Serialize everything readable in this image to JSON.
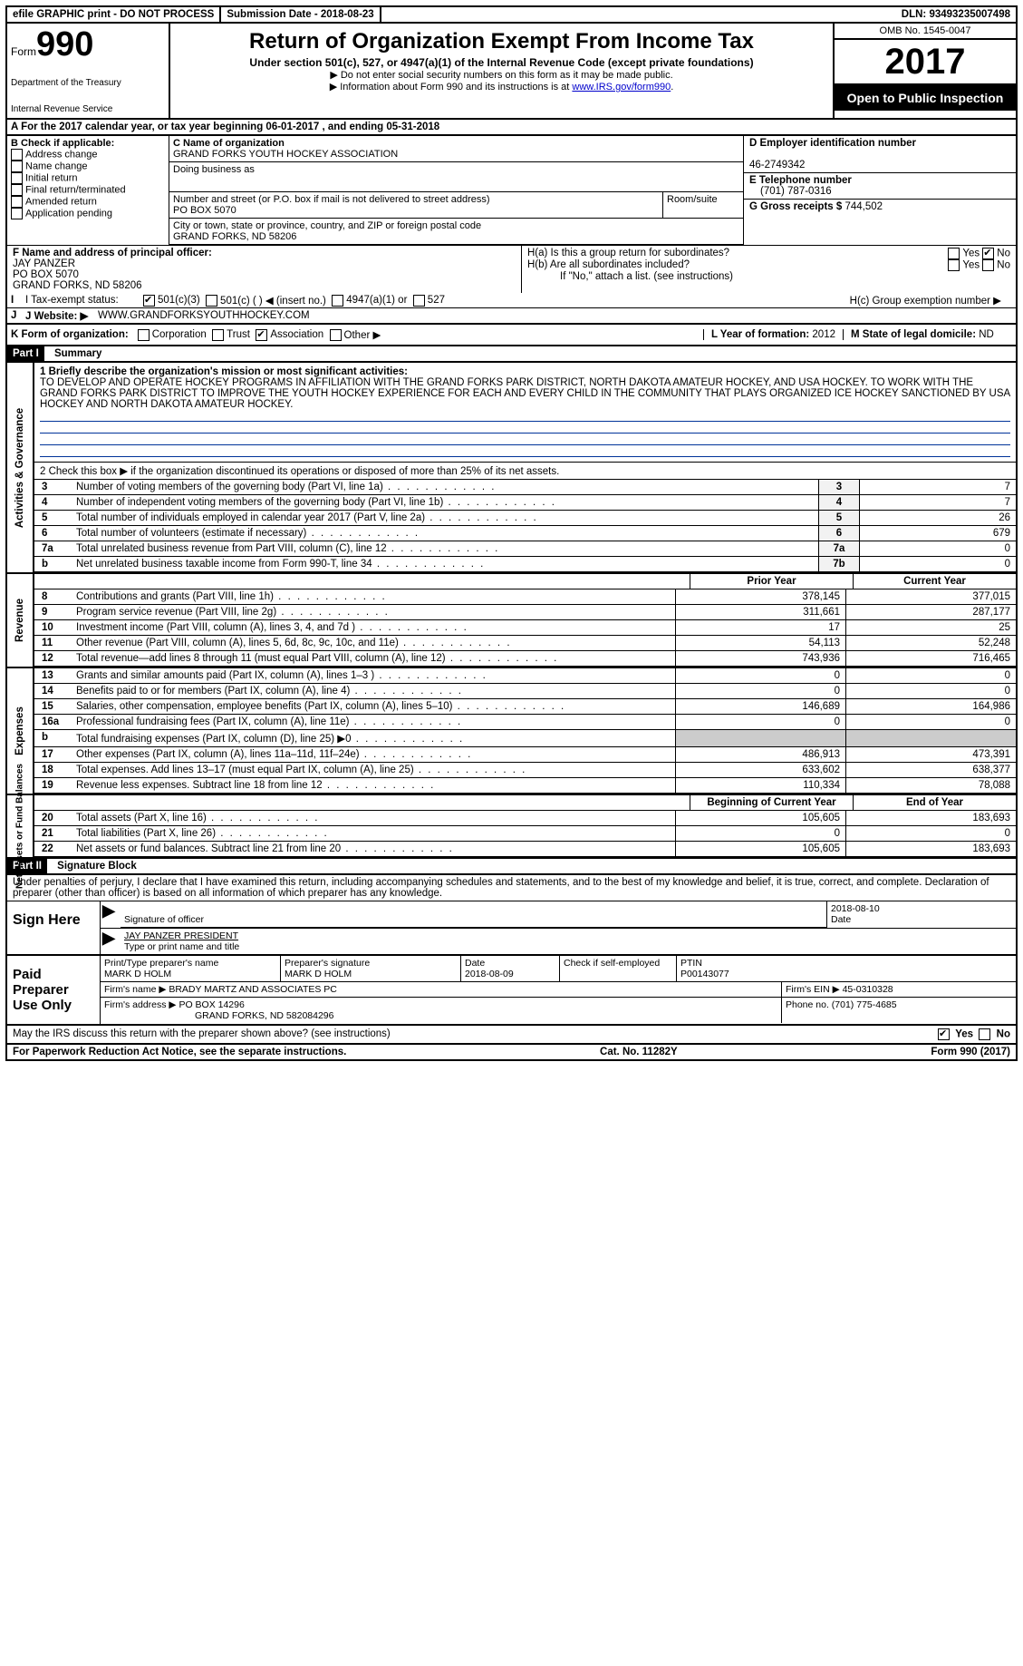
{
  "top": {
    "efile": "efile GRAPHIC print - DO NOT PROCESS",
    "subDate": "Submission Date - 2018-08-23",
    "dln": "DLN: 93493235007498"
  },
  "header": {
    "formWord": "Form",
    "formNum": "990",
    "dept": "Department of the Treasury",
    "irs": "Internal Revenue Service",
    "title": "Return of Organization Exempt From Income Tax",
    "sub": "Under section 501(c), 527, or 4947(a)(1) of the Internal Revenue Code (except private foundations)",
    "noSSN": "▶ Do not enter social security numbers on this form as it may be made public.",
    "info": "▶ Information about Form 990 and its instructions is at ",
    "infoLink": "www.IRS.gov/form990",
    "omb": "OMB No. 1545-0047",
    "year": "2017",
    "open": "Open to Public Inspection"
  },
  "rowA": "A  For the 2017 calendar year, or tax year beginning 06-01-2017   , and ending 05-31-2018",
  "B": {
    "label": "B Check if applicable:",
    "opts": [
      "Address change",
      "Name change",
      "Initial return",
      "Final return/terminated",
      "Amended return",
      "Application pending"
    ]
  },
  "C": {
    "nameLbl": "C Name of organization",
    "name": "GRAND FORKS YOUTH HOCKEY ASSOCIATION",
    "dbaLbl": "Doing business as",
    "dba": "",
    "addrLbl": "Number and street (or P.O. box if mail is not delivered to street address)",
    "room": "Room/suite",
    "addr": "PO BOX 5070",
    "cityLbl": "City or town, state or province, country, and ZIP or foreign postal code",
    "city": "GRAND FORKS, ND  58206"
  },
  "D": {
    "lbl": "D Employer identification number",
    "val": "46-2749342"
  },
  "E": {
    "lbl": "E Telephone number",
    "val": "(701) 787-0316"
  },
  "G": {
    "lbl": "G Gross receipts $ ",
    "val": "744,502"
  },
  "F": {
    "lbl": "F  Name and address of principal officer:",
    "name": "JAY PANZER",
    "addr": "PO BOX 5070",
    "city": "GRAND FORKS, ND  58206"
  },
  "H": {
    "a": "H(a)  Is this a group return for subordinates?",
    "b": "H(b)  Are all subordinates included?",
    "ifno": "If \"No,\" attach a list. (see instructions)",
    "c": "H(c)  Group exemption number ▶",
    "yes": "Yes",
    "no": "No"
  },
  "I": {
    "lbl": "I  Tax-exempt status:",
    "o1": "501(c)(3)",
    "o2": "501(c) (   ) ◀ (insert no.)",
    "o3": "4947(a)(1) or",
    "o4": "527"
  },
  "J": {
    "lbl": "J  Website: ▶",
    "val": "WWW.GRANDFORKSYOUTHHOCKEY.COM"
  },
  "K": {
    "lbl": "K Form of organization:",
    "o1": "Corporation",
    "o2": "Trust",
    "o3": "Association",
    "o4": "Other ▶"
  },
  "L": {
    "lbl": "L Year of formation: ",
    "val": "2012"
  },
  "M": {
    "lbl": "M State of legal domicile: ",
    "val": "ND"
  },
  "part1": {
    "title": "Part I",
    "sub": "Summary",
    "q1": "1  Briefly describe the organization's mission or most significant activities:",
    "mission": "TO DEVELOP AND OPERATE HOCKEY PROGRAMS IN AFFILIATION WITH THE GRAND FORKS PARK DISTRICT, NORTH DAKOTA AMATEUR HOCKEY, AND USA HOCKEY. TO WORK WITH THE GRAND FORKS PARK DISTRICT TO IMPROVE THE YOUTH HOCKEY EXPERIENCE FOR EACH AND EVERY CHILD IN THE COMMUNITY THAT PLAYS ORGANIZED ICE HOCKEY SANCTIONED BY USA HOCKEY AND NORTH DAKOTA AMATEUR HOCKEY.",
    "q2": "2    Check this box ▶     if the organization discontinued its operations or disposed of more than 25% of its net assets.",
    "rows_single": [
      {
        "n": "3",
        "t": "Number of voting members of the governing body (Part VI, line 1a)",
        "box": "3",
        "val": "7"
      },
      {
        "n": "4",
        "t": "Number of independent voting members of the governing body (Part VI, line 1b)",
        "box": "4",
        "val": "7"
      },
      {
        "n": "5",
        "t": "Total number of individuals employed in calendar year 2017 (Part V, line 2a)",
        "box": "5",
        "val": "26"
      },
      {
        "n": "6",
        "t": "Total number of volunteers (estimate if necessary)",
        "box": "6",
        "val": "679"
      },
      {
        "n": "7a",
        "t": "Total unrelated business revenue from Part VIII, column (C), line 12",
        "box": "7a",
        "val": "0"
      },
      {
        "n": "b",
        "t": "Net unrelated business taxable income from Form 990-T, line 34",
        "box": "7b",
        "val": "0"
      }
    ],
    "pyr": "Prior Year",
    "cyr": "Current Year",
    "revenue": [
      {
        "n": "8",
        "t": "Contributions and grants (Part VIII, line 1h)",
        "p": "378,145",
        "c": "377,015"
      },
      {
        "n": "9",
        "t": "Program service revenue (Part VIII, line 2g)",
        "p": "311,661",
        "c": "287,177"
      },
      {
        "n": "10",
        "t": "Investment income (Part VIII, column (A), lines 3, 4, and 7d )",
        "p": "17",
        "c": "25"
      },
      {
        "n": "11",
        "t": "Other revenue (Part VIII, column (A), lines 5, 6d, 8c, 9c, 10c, and 11e)",
        "p": "54,113",
        "c": "52,248"
      },
      {
        "n": "12",
        "t": "Total revenue—add lines 8 through 11 (must equal Part VIII, column (A), line 12)",
        "p": "743,936",
        "c": "716,465"
      }
    ],
    "expenses": [
      {
        "n": "13",
        "t": "Grants and similar amounts paid (Part IX, column (A), lines 1–3 )",
        "p": "0",
        "c": "0"
      },
      {
        "n": "14",
        "t": "Benefits paid to or for members (Part IX, column (A), line 4)",
        "p": "0",
        "c": "0"
      },
      {
        "n": "15",
        "t": "Salaries, other compensation, employee benefits (Part IX, column (A), lines 5–10)",
        "p": "146,689",
        "c": "164,986"
      },
      {
        "n": "16a",
        "t": "Professional fundraising fees (Part IX, column (A), line 11e)",
        "p": "0",
        "c": "0"
      },
      {
        "n": "b",
        "t": "Total fundraising expenses (Part IX, column (D), line 25) ▶0",
        "p": "",
        "c": ""
      },
      {
        "n": "17",
        "t": "Other expenses (Part IX, column (A), lines 11a–11d, 11f–24e)",
        "p": "486,913",
        "c": "473,391"
      },
      {
        "n": "18",
        "t": "Total expenses. Add lines 13–17 (must equal Part IX, column (A), line 25)",
        "p": "633,602",
        "c": "638,377"
      },
      {
        "n": "19",
        "t": "Revenue less expenses. Subtract line 18 from line 12",
        "p": "110,334",
        "c": "78,088"
      }
    ],
    "bcy": "Beginning of Current Year",
    "eoy": "End of Year",
    "net": [
      {
        "n": "20",
        "t": "Total assets (Part X, line 16)",
        "p": "105,605",
        "c": "183,693"
      },
      {
        "n": "21",
        "t": "Total liabilities (Part X, line 26)",
        "p": "0",
        "c": "0"
      },
      {
        "n": "22",
        "t": "Net assets or fund balances. Subtract line 21 from line 20",
        "p": "105,605",
        "c": "183,693"
      }
    ],
    "side_gov": "Activities & Governance",
    "side_rev": "Revenue",
    "side_exp": "Expenses",
    "side_net": "Net Assets or\nFund Balances"
  },
  "part2": {
    "title": "Part II",
    "sub": "Signature Block",
    "perjury": "Under penalties of perjury, I declare that I have examined this return, including accompanying schedules and statements, and to the best of my knowledge and belief, it is true, correct, and complete. Declaration of preparer (other than officer) is based on all information of which preparer has any knowledge.",
    "signHere": "Sign Here",
    "sigOfficer": "Signature of officer",
    "date": "Date",
    "dateVal": "2018-08-10",
    "typedName": "JAY PANZER PRESIDENT",
    "typedLbl": "Type or print name and title",
    "paid": "Paid Preparer Use Only",
    "prepName": "Print/Type preparer's name",
    "prepNameVal": "MARK D HOLM",
    "prepSig": "Preparer's signature",
    "prepSigVal": "MARK D HOLM",
    "prepDate": "Date",
    "prepDateVal": "2018-08-09",
    "selfChk": "Check       if self-employed",
    "ptin": "PTIN",
    "ptinVal": "P00143077",
    "firmName": "Firm's name     ▶ ",
    "firmNameVal": "BRADY MARTZ AND ASSOCIATES PC",
    "firmEIN": "Firm's EIN ▶ ",
    "firmEINVal": "45-0310328",
    "firmAddr": "Firm's address ▶ ",
    "firmAddrVal": "PO BOX 14296",
    "firmCity": "GRAND FORKS, ND  582084296",
    "phone": "Phone no. ",
    "phoneVal": "(701) 775-4685",
    "discuss": "May the IRS discuss this return with the preparer shown above? (see instructions)",
    "yes": "Yes",
    "no": "No"
  },
  "footer": {
    "pra": "For Paperwork Reduction Act Notice, see the separate instructions.",
    "cat": "Cat. No. 11282Y",
    "form": "Form 990 (2017)"
  }
}
